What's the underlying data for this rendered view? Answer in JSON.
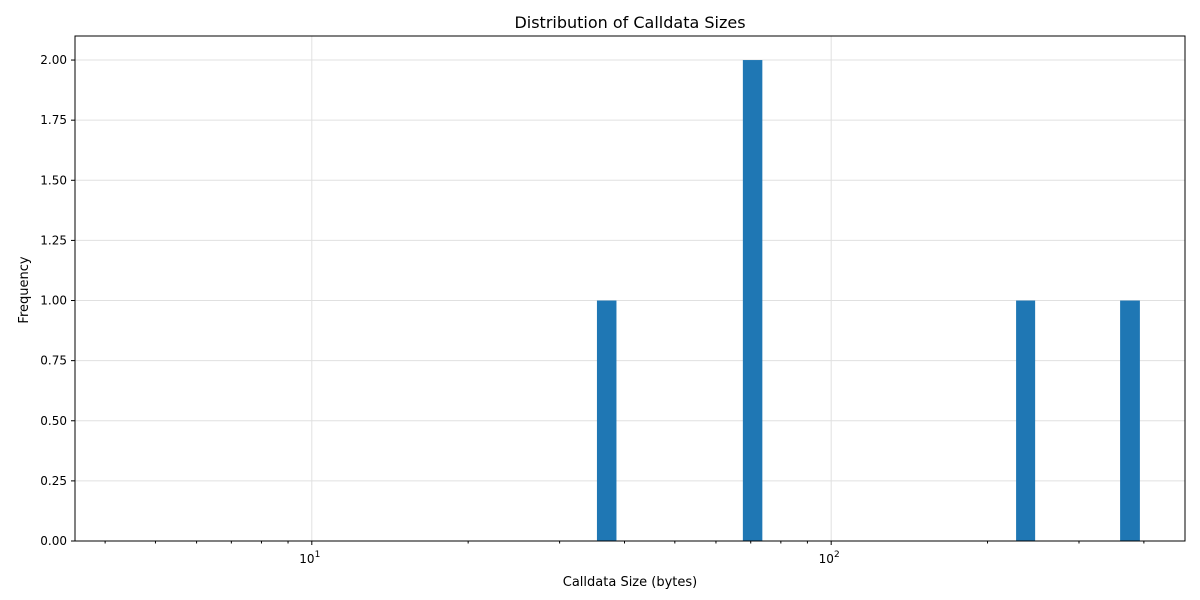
{
  "chart_data": {
    "type": "bar",
    "title": "Distribution of Calldata Sizes",
    "xlabel": "Calldata Size (bytes)",
    "ylabel": "Frequency",
    "xscale": "log",
    "xlim": [
      3.5,
      480
    ],
    "ylim": [
      0,
      2.1
    ],
    "grid": true,
    "bar_color": "#1f77b4",
    "bins": [
      {
        "x0": 35.4,
        "x1": 38.6,
        "count": 1
      },
      {
        "x0": 67.6,
        "x1": 73.7,
        "count": 2
      },
      {
        "x0": 227,
        "x1": 247,
        "count": 1
      },
      {
        "x0": 360,
        "x1": 393,
        "count": 1
      }
    ],
    "y_ticks": [
      0.0,
      0.25,
      0.5,
      0.75,
      1.0,
      1.25,
      1.5,
      1.75,
      2.0
    ],
    "y_tick_labels": [
      "0.00",
      "0.25",
      "0.50",
      "0.75",
      "1.00",
      "1.25",
      "1.50",
      "1.75",
      "2.00"
    ],
    "x_major_ticks": [
      10,
      100
    ],
    "x_major_tick_labels": [
      {
        "base": "10",
        "exp": "1"
      },
      {
        "base": "10",
        "exp": "2"
      }
    ],
    "x_minor_ticks": [
      4,
      5,
      6,
      7,
      8,
      9,
      20,
      30,
      40,
      50,
      60,
      70,
      80,
      90,
      200,
      300,
      400
    ]
  }
}
